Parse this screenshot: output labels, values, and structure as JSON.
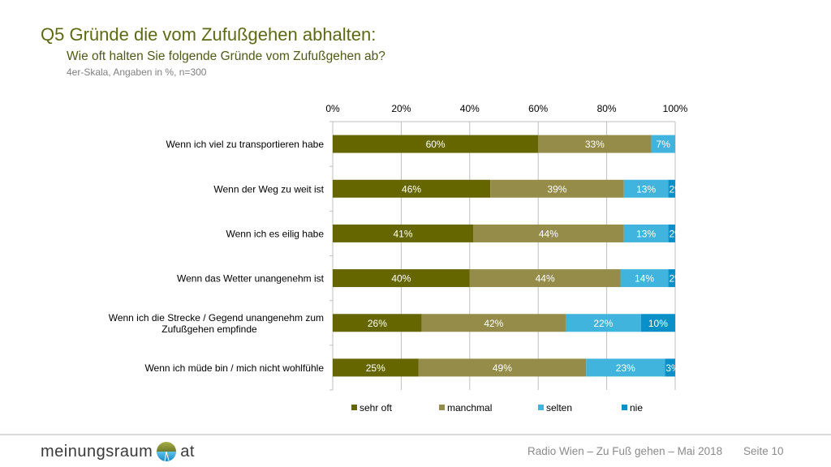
{
  "header": {
    "title": "Q5 Gründe die vom Zufußgehen abhalten:",
    "subtitle": "Wie oft halten Sie folgende Gründe vom Zufußgehen ab?",
    "note": "4er-Skala, Angaben in %, n=300"
  },
  "chart_data": {
    "type": "bar",
    "orientation": "horizontal",
    "stacked": true,
    "title": "",
    "xlabel": "",
    "ylabel": "",
    "xlim": [
      0,
      100
    ],
    "x_ticks": [
      "0%",
      "20%",
      "40%",
      "60%",
      "80%",
      "100%"
    ],
    "x_axis_position": "top",
    "grid": true,
    "legend_position": "bottom",
    "categories": [
      "Wenn ich viel zu transportieren habe",
      "Wenn der Weg zu weit ist",
      "Wenn ich es eilig habe",
      "Wenn das Wetter unangenehm ist",
      "Wenn ich die Strecke / Gegend unangenehm zum Zufußgehen empfinde",
      "Wenn ich müde bin / mich nicht wohlfühle"
    ],
    "series": [
      {
        "name": "sehr oft",
        "color": "#666600",
        "values": [
          60,
          46,
          41,
          40,
          26,
          25
        ]
      },
      {
        "name": "manchmal",
        "color": "#948c48",
        "values": [
          33,
          39,
          44,
          44,
          42,
          49
        ]
      },
      {
        "name": "selten",
        "color": "#40b4dc",
        "values": [
          7,
          13,
          13,
          14,
          22,
          23
        ]
      },
      {
        "name": "nie",
        "color": "#0a90c8",
        "values": [
          0,
          2,
          2,
          2,
          10,
          3
        ]
      }
    ]
  },
  "footer": {
    "logo_left": "meinungsraum",
    "logo_right": "at",
    "text": "Radio Wien – Zu Fuß gehen – Mai 2018",
    "page": "Seite 10"
  }
}
